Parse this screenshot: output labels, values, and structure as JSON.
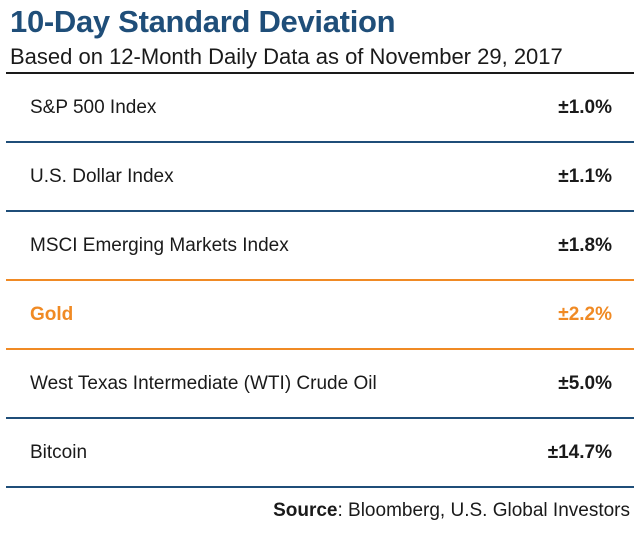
{
  "chart_data": {
    "type": "table",
    "title": "10-Day Standard Deviation",
    "subtitle": "Based on 12-Month Daily Data as of November 29, 2017",
    "rows": [
      {
        "name": "S&P 500 Index",
        "value": "±1.0%",
        "highlight": false
      },
      {
        "name": "U.S. Dollar Index",
        "value": "±1.1%",
        "highlight": false
      },
      {
        "name": "MSCI Emerging Markets Index",
        "value": "±1.8%",
        "highlight": false
      },
      {
        "name": "Gold",
        "value": "±2.2%",
        "highlight": true
      },
      {
        "name": "West Texas Intermediate (WTI) Crude Oil",
        "value": "±5.0%",
        "highlight": false
      },
      {
        "name": "Bitcoin",
        "value": "±14.7%",
        "highlight": false
      }
    ],
    "source_label": "Source",
    "source_text": ": Bloomberg, U.S. Global Investors"
  },
  "colors": {
    "title": "#1f4e79",
    "rule": "#1f4e79",
    "highlight": "#f08a24"
  }
}
